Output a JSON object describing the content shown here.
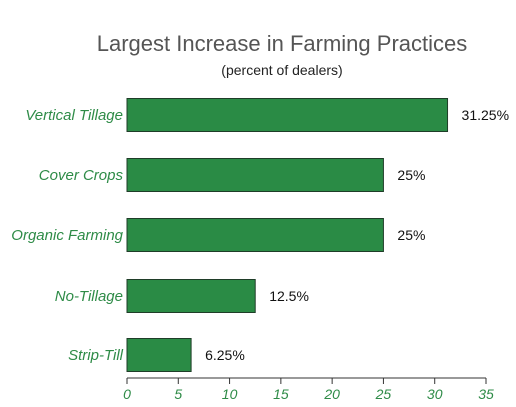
{
  "chart_data": {
    "type": "bar",
    "orientation": "horizontal",
    "title": "Largest Increase in Farming Practices",
    "subtitle": "(percent of dealers)",
    "categories": [
      "Vertical Tillage",
      "Cover Crops",
      "Organic Farming",
      "No-Tillage",
      "Strip-Till"
    ],
    "values": [
      31.25,
      25,
      25,
      12.5,
      6.25
    ],
    "value_labels": [
      "31.25%",
      "25%",
      "25%",
      "12.5%",
      "6.25%"
    ],
    "xlim": [
      0,
      35
    ],
    "xticks": [
      "0",
      "5",
      "10",
      "15",
      "20",
      "25",
      "30",
      "35"
    ],
    "grid": false,
    "legend": "none"
  },
  "colors": {
    "bar_fill": "#2a8b45",
    "bar_stroke": "#1f3d28",
    "label_green": "#2e8b47",
    "axis": "#333333",
    "title": "#555555"
  }
}
